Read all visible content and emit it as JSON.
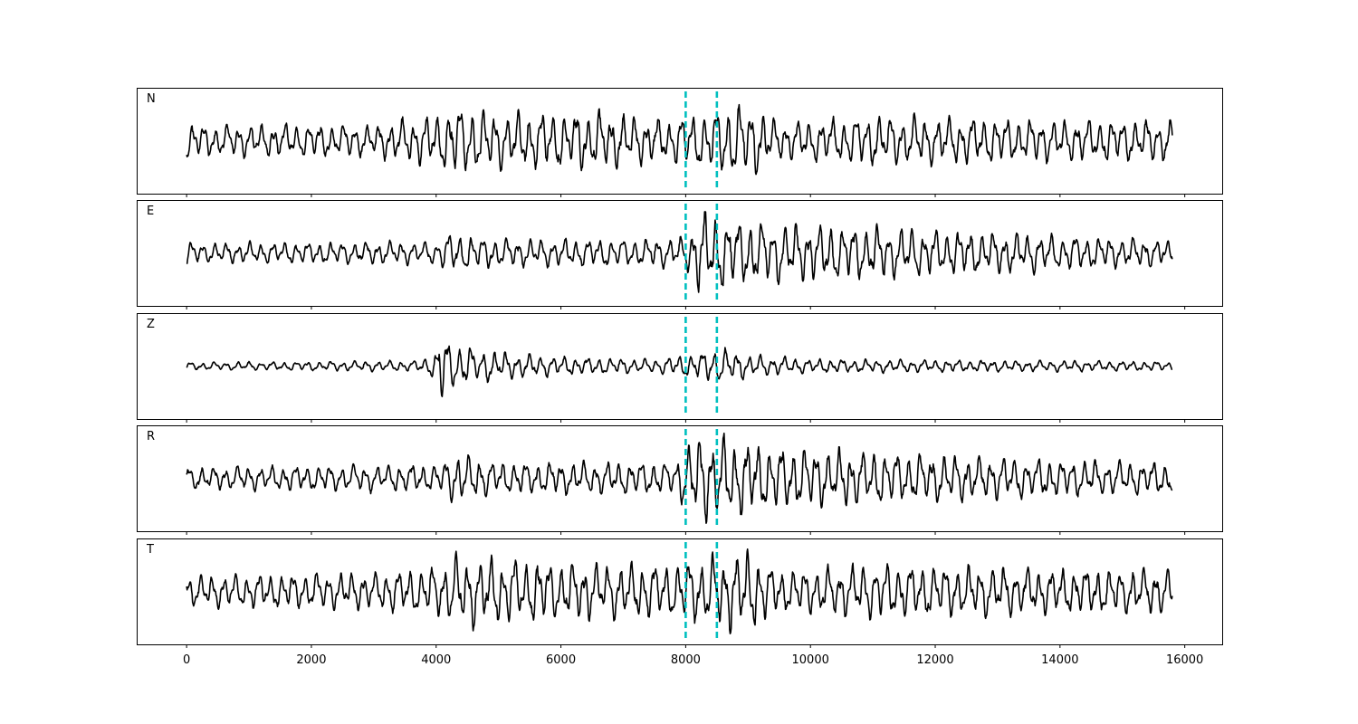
{
  "chart_data": {
    "type": "line",
    "title": "",
    "xlabel": "",
    "ylabel": "",
    "xlim": [
      -800,
      16600
    ],
    "xticks": [
      0,
      2000,
      4000,
      6000,
      8000,
      10000,
      12000,
      14000,
      16000
    ],
    "xticklabels": [
      "0",
      "2000",
      "4000",
      "6000",
      "8000",
      "10000",
      "12000",
      "14000",
      "16000"
    ],
    "grid": false,
    "trace_color": "#000000",
    "marker_color": "#00bfbf",
    "markers": [
      8000,
      8500
    ],
    "sample_count": 15800,
    "panels": [
      {
        "name": "N",
        "ylim": [
          -1.1,
          1.1
        ],
        "profile": [
          {
            "x": 0,
            "amp": 0.5
          },
          {
            "x": 100,
            "amp": 0.35
          },
          {
            "x": 3000,
            "amp": 0.35
          },
          {
            "x": 4100,
            "amp": 0.6
          },
          {
            "x": 4300,
            "amp": 0.8
          },
          {
            "x": 5000,
            "amp": 0.6
          },
          {
            "x": 6600,
            "amp": 0.65
          },
          {
            "x": 7700,
            "amp": 0.45
          },
          {
            "x": 8000,
            "amp": 0.55
          },
          {
            "x": 9000,
            "amp": 0.85
          },
          {
            "x": 9500,
            "amp": 0.4
          },
          {
            "x": 11000,
            "amp": 0.55
          },
          {
            "x": 14000,
            "amp": 0.45
          },
          {
            "x": 15800,
            "amp": 0.45
          }
        ]
      },
      {
        "name": "E",
        "ylim": [
          -1.1,
          1.1
        ],
        "profile": [
          {
            "x": 0,
            "amp": 0.3
          },
          {
            "x": 100,
            "amp": 0.22
          },
          {
            "x": 4000,
            "amp": 0.25
          },
          {
            "x": 4200,
            "amp": 0.45
          },
          {
            "x": 5000,
            "amp": 0.3
          },
          {
            "x": 7600,
            "amp": 0.3
          },
          {
            "x": 8000,
            "amp": 0.35
          },
          {
            "x": 8200,
            "amp": 0.9
          },
          {
            "x": 8500,
            "amp": 0.8
          },
          {
            "x": 9400,
            "amp": 0.65
          },
          {
            "x": 11300,
            "amp": 0.55
          },
          {
            "x": 13000,
            "amp": 0.45
          },
          {
            "x": 15800,
            "amp": 0.28
          }
        ]
      },
      {
        "name": "Z",
        "ylim": [
          -1.1,
          1.1
        ],
        "profile": [
          {
            "x": 0,
            "amp": 0.08
          },
          {
            "x": 3700,
            "amp": 0.12
          },
          {
            "x": 4000,
            "amp": 0.3
          },
          {
            "x": 4080,
            "amp": 0.95
          },
          {
            "x": 4200,
            "amp": 0.5
          },
          {
            "x": 4700,
            "amp": 0.35
          },
          {
            "x": 6000,
            "amp": 0.2
          },
          {
            "x": 7500,
            "amp": 0.15
          },
          {
            "x": 8000,
            "amp": 0.25
          },
          {
            "x": 8600,
            "amp": 0.4
          },
          {
            "x": 9000,
            "amp": 0.25
          },
          {
            "x": 10000,
            "amp": 0.15
          },
          {
            "x": 15800,
            "amp": 0.1
          }
        ]
      },
      {
        "name": "R",
        "ylim": [
          -1.1,
          1.1
        ],
        "profile": [
          {
            "x": 0,
            "amp": 0.35
          },
          {
            "x": 100,
            "amp": 0.25
          },
          {
            "x": 4000,
            "amp": 0.3
          },
          {
            "x": 4300,
            "amp": 0.55
          },
          {
            "x": 5000,
            "amp": 0.35
          },
          {
            "x": 7800,
            "amp": 0.35
          },
          {
            "x": 8200,
            "amp": 0.95
          },
          {
            "x": 8500,
            "amp": 0.9
          },
          {
            "x": 9300,
            "amp": 0.7
          },
          {
            "x": 11500,
            "amp": 0.55
          },
          {
            "x": 14000,
            "amp": 0.4
          },
          {
            "x": 15800,
            "amp": 0.35
          }
        ]
      },
      {
        "name": "T",
        "ylim": [
          -1.1,
          1.1
        ],
        "profile": [
          {
            "x": 0,
            "amp": 0.5
          },
          {
            "x": 100,
            "amp": 0.35
          },
          {
            "x": 3000,
            "amp": 0.4
          },
          {
            "x": 4100,
            "amp": 0.55
          },
          {
            "x": 4300,
            "amp": 0.8
          },
          {
            "x": 5200,
            "amp": 0.7
          },
          {
            "x": 6600,
            "amp": 0.6
          },
          {
            "x": 7800,
            "amp": 0.6
          },
          {
            "x": 9000,
            "amp": 0.9
          },
          {
            "x": 9500,
            "amp": 0.45
          },
          {
            "x": 11000,
            "amp": 0.6
          },
          {
            "x": 14000,
            "amp": 0.5
          },
          {
            "x": 15800,
            "amp": 0.5
          }
        ]
      }
    ]
  }
}
